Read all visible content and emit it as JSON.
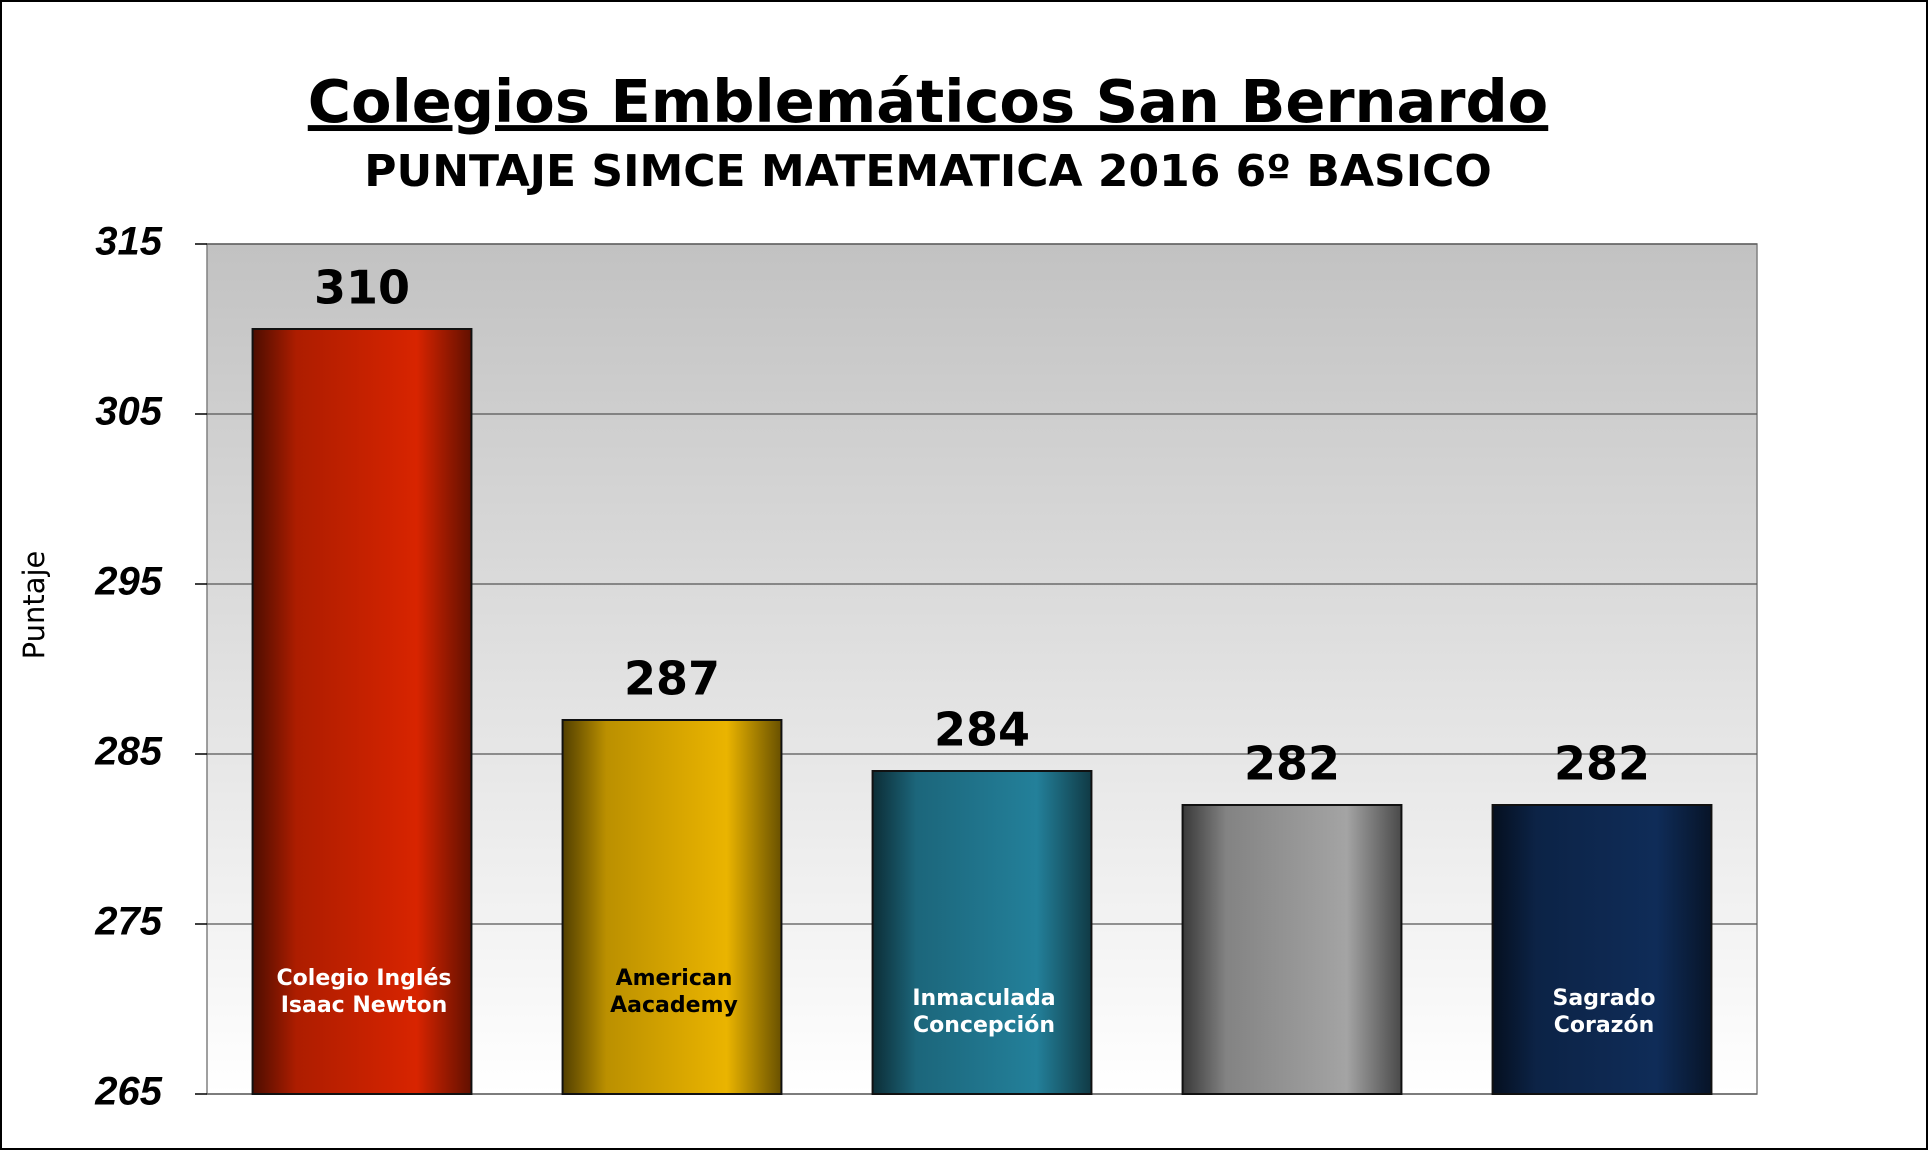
{
  "chart_data": {
    "type": "bar",
    "title": "Colegios Emblemáticos San Bernardo",
    "subtitle": "PUNTAJE SIMCE MATEMATICA 2016  6º BASICO",
    "y_label": "Puntaje",
    "categories": [
      "Colegio Inglés\nIsaac Newton",
      "American\nAacademy",
      "Inmaculada\nConcepción",
      null,
      "Sagrado\nCorazón"
    ],
    "values": [
      310,
      287,
      284,
      282,
      282
    ],
    "colors": [
      "#d82400",
      "#eab400",
      "#23809a",
      "#a4a4a4",
      "#0f2c58"
    ],
    "ylim": [
      265,
      315
    ],
    "yticks": [
      265,
      275,
      285,
      295,
      305,
      315
    ],
    "grid": true
  }
}
